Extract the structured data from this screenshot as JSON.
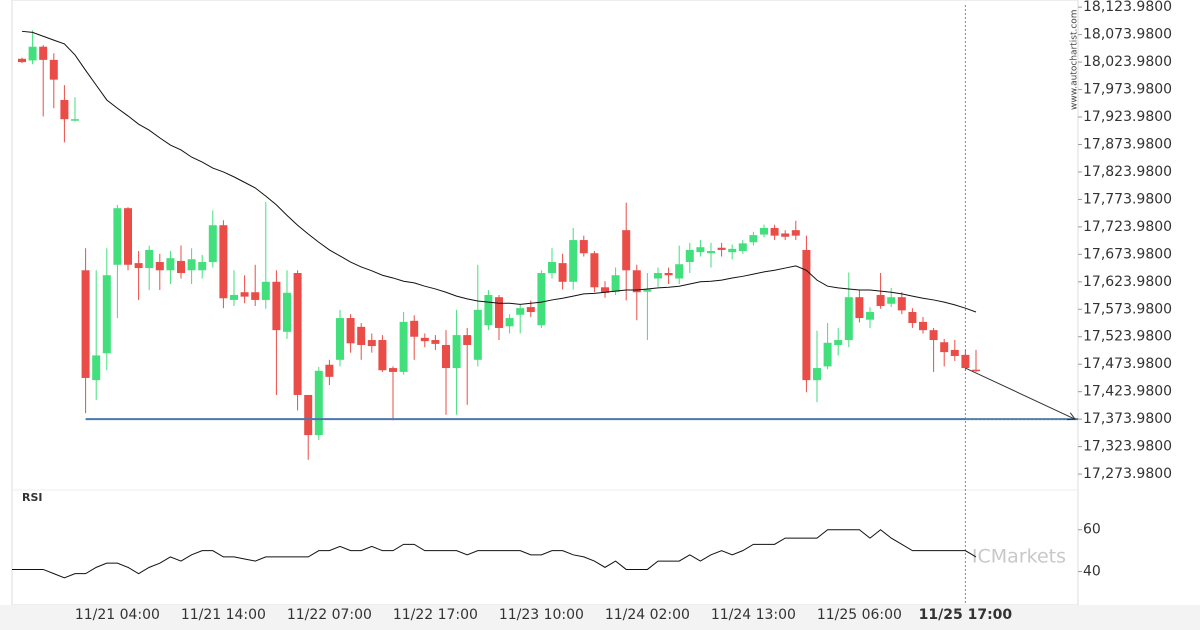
{
  "chart_data": [
    {
      "type": "candlestick",
      "categories": [
        null,
        null,
        null,
        null,
        null,
        null,
        null,
        null,
        null,
        "11/21 04:00",
        null,
        null,
        null,
        null,
        null,
        null,
        null,
        null,
        null,
        "11/21 14:00",
        null,
        null,
        null,
        null,
        null,
        null,
        null,
        null,
        null,
        "11/22 07:00",
        null,
        null,
        null,
        null,
        null,
        null,
        null,
        null,
        null,
        "11/22 17:00",
        null,
        null,
        null,
        null,
        null,
        null,
        null,
        null,
        null,
        "11/23 10:00",
        null,
        null,
        null,
        null,
        null,
        null,
        null,
        null,
        null,
        "11/24 02:00",
        null,
        null,
        null,
        null,
        null,
        null,
        null,
        null,
        null,
        "11/24 13:00",
        null,
        null,
        null,
        null,
        null,
        null,
        null,
        null,
        null,
        "11/25 06:00",
        null,
        null,
        null,
        null,
        null,
        null,
        null,
        null,
        null,
        "11/25 17:00",
        null
      ],
      "open": [
        18030,
        18027,
        18052,
        18028,
        17955,
        17918,
        17645,
        17445,
        17494,
        17655,
        17758,
        17658,
        17649,
        17660,
        17645,
        17662,
        17645,
        17645,
        17660,
        17727,
        17591,
        17605,
        17605,
        17591,
        17624,
        17533,
        17640,
        17418,
        17345,
        17473,
        17482,
        17558,
        17542,
        17518,
        17518,
        17467,
        17460,
        17553,
        17522,
        17518,
        17509,
        17467,
        17527,
        17482,
        17545,
        17596,
        17543,
        17564,
        17578,
        17545,
        17640,
        17658,
        17624,
        17700,
        17676,
        17614,
        17606,
        17718,
        17645,
        17606,
        17630,
        17640,
        17630,
        17660,
        17678,
        17676,
        17686,
        17678,
        17680,
        17696,
        17710,
        17722,
        17712,
        17718,
        17682,
        17445,
        17470,
        17509,
        17518,
        17596,
        17555,
        17600,
        17584,
        17596,
        17569,
        17551,
        17536,
        17514,
        17500,
        17491,
        17464
      ],
      "high": [
        18032,
        18082,
        18055,
        18040,
        17982,
        17960,
        17685,
        17645,
        17685,
        17764,
        17760,
        17680,
        17690,
        17675,
        17680,
        17690,
        17685,
        17673,
        17754,
        17736,
        17645,
        17636,
        17655,
        17769,
        17645,
        17645,
        17645,
        17418,
        17469,
        17482,
        17573,
        17565,
        17549,
        17530,
        17527,
        17470,
        17569,
        17563,
        17530,
        17527,
        17536,
        17573,
        17540,
        17655,
        17609,
        17600,
        17565,
        17582,
        17590,
        17645,
        17685,
        17675,
        17722,
        17708,
        17680,
        17625,
        17650,
        17768,
        17655,
        17640,
        17650,
        17650,
        17690,
        17695,
        17700,
        17695,
        17695,
        17692,
        17700,
        17715,
        17728,
        17728,
        17718,
        17735,
        17708,
        17535,
        17549,
        17540,
        17641,
        17609,
        17578,
        17640,
        17613,
        17605,
        17576,
        17560,
        17540,
        17520,
        17518,
        17500,
        17500
      ],
      "low": [
        18022,
        18020,
        17925,
        17940,
        17878,
        17916,
        17385,
        17409,
        17463,
        17558,
        17645,
        17591,
        17609,
        17609,
        17620,
        17630,
        17620,
        17630,
        17650,
        17576,
        17580,
        17585,
        17580,
        17575,
        17418,
        17520,
        17390,
        17300,
        17336,
        17436,
        17470,
        17495,
        17482,
        17495,
        17460,
        17372,
        17455,
        17482,
        17505,
        17500,
        17382,
        17382,
        17400,
        17470,
        17536,
        17518,
        17530,
        17530,
        17560,
        17540,
        17630,
        17610,
        17610,
        17670,
        17605,
        17595,
        17600,
        17590,
        17554,
        17518,
        17615,
        17620,
        17620,
        17640,
        17670,
        17650,
        17670,
        17665,
        17675,
        17690,
        17705,
        17700,
        17700,
        17700,
        17423,
        17405,
        17465,
        17490,
        17505,
        17550,
        17540,
        17575,
        17578,
        17565,
        17540,
        17530,
        17460,
        17470,
        17480,
        17462,
        17460
      ],
      "close": [
        18024,
        18052,
        18028,
        17992,
        17920,
        17920,
        17449,
        17490,
        17636,
        17758,
        17655,
        17649,
        17682,
        17645,
        17667,
        17640,
        17665,
        17660,
        17727,
        17594,
        17600,
        17597,
        17591,
        17624,
        17536,
        17604,
        17418,
        17345,
        17462,
        17451,
        17558,
        17512,
        17509,
        17507,
        17463,
        17460,
        17551,
        17524,
        17516,
        17511,
        17467,
        17527,
        17509,
        17573,
        17600,
        17540,
        17558,
        17576,
        17569,
        17640,
        17660,
        17624,
        17700,
        17676,
        17614,
        17604,
        17636,
        17645,
        17605,
        17610,
        17640,
        17636,
        17656,
        17682,
        17687,
        17680,
        17682,
        17684,
        17694,
        17709,
        17722,
        17708,
        17706,
        17708,
        17445,
        17467,
        17513,
        17518,
        17596,
        17558,
        17569,
        17580,
        17596,
        17572,
        17549,
        17536,
        17518,
        17496,
        17489,
        17467,
        17462
      ],
      "ma": [
        18080,
        18078,
        18071,
        18064,
        18057,
        18037,
        18009,
        17982,
        17955,
        17940,
        17926,
        17911,
        17900,
        17886,
        17873,
        17864,
        17851,
        17842,
        17831,
        17824,
        17815,
        17805,
        17795,
        17780,
        17764,
        17745,
        17727,
        17711,
        17696,
        17682,
        17671,
        17660,
        17651,
        17644,
        17636,
        17631,
        17625,
        17622,
        17616,
        17611,
        17605,
        17598,
        17593,
        17589,
        17587,
        17585,
        17585,
        17583,
        17585,
        17587,
        17591,
        17594,
        17598,
        17602,
        17603,
        17605,
        17607,
        17609,
        17609,
        17611,
        17613,
        17614,
        17616,
        17620,
        17624,
        17625,
        17627,
        17631,
        17634,
        17638,
        17642,
        17645,
        17649,
        17653,
        17645,
        17627,
        17616,
        17613,
        17611,
        17609,
        17609,
        17607,
        17605,
        17602,
        17598,
        17594,
        17591,
        17587,
        17582,
        17576,
        17569
      ],
      "up_color": "#42e07c",
      "down_color": "#ea4c48",
      "ma_color": "#111111",
      "level": 17373.98,
      "level_start": 6,
      "level_color": "#4a78b0",
      "ylim": [
        17245,
        18137
      ],
      "yticks": [
        {
          "value": 18123.98,
          "label": "18,123.9800"
        },
        {
          "value": 18073.98,
          "label": "18,073.9800"
        },
        {
          "value": 18023.98,
          "label": "18,023.9800"
        },
        {
          "value": 17973.98,
          "label": "17,973.9800"
        },
        {
          "value": 17923.98,
          "label": "17,923.9800"
        },
        {
          "value": 17873.98,
          "label": "17,873.9800"
        },
        {
          "value": 17823.98,
          "label": "17,823.9800"
        },
        {
          "value": 17773.98,
          "label": "17,773.9800"
        },
        {
          "value": 17723.98,
          "label": "17,723.9800"
        },
        {
          "value": 17673.98,
          "label": "17,673.9800"
        },
        {
          "value": 17623.98,
          "label": "17,623.9800"
        },
        {
          "value": 17573.98,
          "label": "17,573.9800"
        },
        {
          "value": 17523.98,
          "label": "17,523.9800"
        },
        {
          "value": 17473.98,
          "label": "17,473.9800"
        },
        {
          "value": 17423.98,
          "label": "17,423.9800"
        },
        {
          "value": 17373.98,
          "label": "17,373.9800"
        },
        {
          "value": 17323.98,
          "label": "17,323.9800"
        },
        {
          "value": 17273.98,
          "label": "17,273.9800"
        }
      ],
      "watermark": "www.autochartist.com"
    },
    {
      "type": "line",
      "title": "RSI",
      "color": "#111111",
      "values": [
        41,
        41,
        41,
        39,
        37,
        39,
        39,
        42,
        44,
        44,
        42,
        39,
        42,
        44,
        47,
        45,
        48,
        50,
        50,
        47,
        47,
        46,
        45,
        47,
        47,
        47,
        47,
        47,
        50,
        50,
        52,
        50,
        50,
        52,
        50,
        50,
        53,
        53,
        50,
        50,
        50,
        50,
        48,
        50,
        50,
        50,
        50,
        50,
        48,
        48,
        50,
        50,
        48,
        47,
        45,
        42,
        45,
        41,
        41,
        41,
        45,
        45,
        45,
        48,
        45,
        48,
        50,
        48,
        50,
        53,
        53,
        53,
        56,
        56,
        56,
        56,
        60,
        60,
        60,
        60,
        56,
        60,
        56,
        53,
        50,
        50,
        50,
        50,
        50,
        50,
        47
      ],
      "ylim": [
        24,
        79
      ],
      "yticks": [
        60,
        40
      ],
      "brand": "ICMarkets"
    }
  ]
}
